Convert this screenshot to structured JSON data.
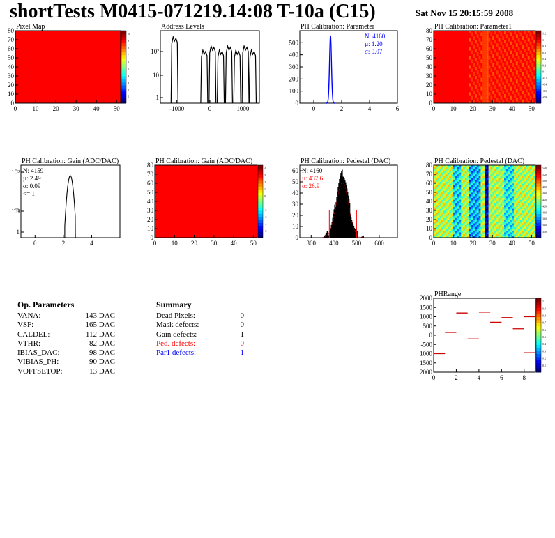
{
  "header": {
    "title": "shortTests M0415-071219.14:08 T-10a (C15)",
    "date": "Sat Nov 15 20:15:59 2008"
  },
  "op_parameters": {
    "title": "Op. Parameters",
    "rows": [
      {
        "name": "VANA:",
        "value": "143 DAC"
      },
      {
        "name": "VSF:",
        "value": "165 DAC"
      },
      {
        "name": "CALDEL:",
        "value": "112 DAC"
      },
      {
        "name": "VTHR:",
        "value": "82 DAC"
      },
      {
        "name": "IBIAS_DAC:",
        "value": "98 DAC"
      },
      {
        "name": "VIBIAS_PH:",
        "value": "90 DAC"
      },
      {
        "name": "VOFFSETOP:",
        "value": "13 DAC"
      }
    ]
  },
  "summary": {
    "title": "Summary",
    "rows": [
      {
        "name": "Dead Pixels:",
        "value": "0",
        "color": "#000000"
      },
      {
        "name": "Mask defects:",
        "value": "0",
        "color": "#000000"
      },
      {
        "name": "Gain defects:",
        "value": "1",
        "color": "#000000"
      },
      {
        "name": "Ped. defects:",
        "value": "0",
        "color": "#ff0000"
      },
      {
        "name": "Par1 defects:",
        "value": "1",
        "color": "#0000ff"
      }
    ]
  },
  "chart_data": [
    {
      "id": "pixel_map",
      "type": "heatmap",
      "title": "Pixel Map",
      "xlim": [
        0,
        52
      ],
      "ylim": [
        0,
        80
      ],
      "xticks": [
        "0",
        "10",
        "20",
        "30",
        "40",
        "50"
      ],
      "yticks": [
        "0",
        "10",
        "20",
        "30",
        "40",
        "50",
        "60",
        "70",
        "80"
      ],
      "fill": "uniform",
      "value": 10,
      "zmax_label": "10",
      "palette_labels": [
        "1",
        "2",
        "3",
        "4",
        "5",
        "6",
        "7",
        "8",
        "9",
        "10"
      ]
    },
    {
      "id": "address_levels",
      "type": "line",
      "title": "Address Levels",
      "xlim": [
        -1500,
        1500
      ],
      "log_y": true,
      "xticks": [
        "-1000",
        "0",
        "1000"
      ],
      "yticks": [
        "1",
        "10",
        "10²"
      ],
      "peaks": [
        -1050,
        -150,
        100,
        350,
        600,
        850,
        1100,
        1320
      ]
    },
    {
      "id": "ph_cal_param",
      "type": "line",
      "title": "PH Calibration: Parameter",
      "xlim": [
        -1,
        6
      ],
      "ylim": [
        0,
        600
      ],
      "xticks": [
        "0",
        "2",
        "4",
        "6"
      ],
      "yticks": [
        "0",
        "100",
        "200",
        "300",
        "400",
        "500"
      ],
      "color": "#0000ff",
      "mean": 1.2,
      "sigma": 0.07,
      "peak": 560,
      "stats": {
        "n": "N: 4160",
        "mu": "µ: 1.20",
        "sigma": "σ: 0.07"
      }
    },
    {
      "id": "ph_cal_param1",
      "type": "heatmap",
      "title": "PH Calibration: Parameter1",
      "xlim": [
        0,
        52
      ],
      "ylim": [
        0,
        80
      ],
      "xticks": [
        "0",
        "10",
        "20",
        "30",
        "40",
        "50"
      ],
      "yticks": [
        "0",
        "10",
        "20",
        "30",
        "40",
        "50",
        "60",
        "70",
        "80"
      ],
      "fill": "mostly-max",
      "palette_labels": [
        "-0.8",
        "-0.6",
        "-0.4",
        "-0.2",
        "0",
        "0.2",
        "0.4",
        "0.6",
        "0.8",
        "1",
        "1.2"
      ]
    },
    {
      "id": "ph_cal_gain_hist",
      "type": "line",
      "title": "PH Calibration: Gain (ADC/DAC)",
      "xlim": [
        -1,
        6
      ],
      "log_y": true,
      "xticks": [
        "0",
        "2",
        "4"
      ],
      "yticks": [
        "1",
        "10",
        "10²",
        "10³"
      ],
      "mean": 2.49,
      "sigma": 0.09,
      "peak": 500,
      "stats": {
        "n": "N: 4159",
        "mu": "µ: 2.49",
        "sigma": "σ: 0.09",
        "under": "<= 1"
      }
    },
    {
      "id": "ph_cal_gain_map",
      "type": "heatmap",
      "title": "PH Calibration: Gain (ADC/DAC)",
      "xlim": [
        0,
        52
      ],
      "ylim": [
        0,
        80
      ],
      "xticks": [
        "0",
        "10",
        "20",
        "30",
        "40",
        "50"
      ],
      "yticks": [
        "0",
        "10",
        "20",
        "30",
        "40",
        "50",
        "60",
        "70",
        "80"
      ],
      "fill": "uniform",
      "palette_labels": [
        "-5",
        "-4",
        "-3",
        "-2",
        "-1",
        "0",
        "1",
        "2",
        "3",
        "4"
      ]
    },
    {
      "id": "ph_cal_pedestal_hist",
      "type": "bar",
      "title": "PH Calibration: Pedestal (DAC)",
      "xlim": [
        250,
        680
      ],
      "ylim": [
        0,
        65
      ],
      "xticks": [
        "300",
        "400",
        "500",
        "600"
      ],
      "yticks": [
        "0",
        "10",
        "20",
        "30",
        "40",
        "50",
        "60"
      ],
      "mean": 437.6,
      "sigma": 26.9,
      "peak": 58,
      "cut_low": 380,
      "cut_high": 500,
      "stats": {
        "n": "N: 4160",
        "mu": "µ: 437.6",
        "sigma": "σ: 26.9"
      }
    },
    {
      "id": "ph_cal_pedestal_map",
      "type": "heatmap",
      "title": "PH Calibration: Pedestal (DAC)",
      "xlim": [
        0,
        52
      ],
      "ylim": [
        0,
        80
      ],
      "xticks": [
        "0",
        "10",
        "20",
        "30",
        "40",
        "50"
      ],
      "yticks": [
        "0",
        "10",
        "20",
        "30",
        "40",
        "50",
        "60",
        "70",
        "80"
      ],
      "fill": "column-pattern",
      "palette_labels": [
        "340",
        "360",
        "380",
        "400",
        "420",
        "440",
        "460",
        "480",
        "500",
        "520",
        "540"
      ]
    },
    {
      "id": "ph_range",
      "type": "scatter",
      "title": "PHRange",
      "xlim": [
        0,
        9
      ],
      "ylim": [
        -2000,
        2000
      ],
      "xticks": [
        "0",
        "2",
        "4",
        "6",
        "8"
      ],
      "yticks": [
        "2000",
        "1500",
        "1000",
        "500",
        "0",
        "-500",
        "1000",
        "1500",
        "2000"
      ],
      "segments": [
        [
          0,
          -1000
        ],
        [
          1,
          150
        ],
        [
          2,
          1200
        ],
        [
          3,
          -200
        ],
        [
          4,
          1250
        ],
        [
          5,
          700
        ],
        [
          6,
          950
        ],
        [
          7,
          350
        ],
        [
          8,
          -950
        ],
        [
          8,
          1000
        ]
      ],
      "palette_labels": [
        "0.1",
        "0.2",
        "0.3",
        "0.4",
        "0.5",
        "0.6",
        "0.7",
        "0.8",
        "0.9",
        "1"
      ]
    }
  ]
}
